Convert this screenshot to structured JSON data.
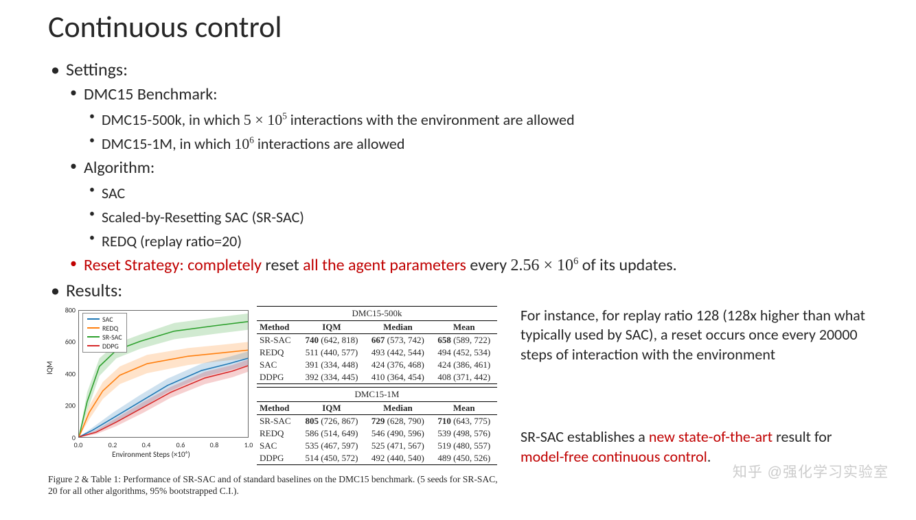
{
  "title": "Continuous control",
  "bullets": {
    "settings": "Settings:",
    "dmc15": "DMC15 Benchmark:",
    "dmc15_500k_a": "DMC15-500k, in which ",
    "dmc15_500k_b": "5 × 10",
    "dmc15_500k_c": " interactions with the environment are allowed",
    "dmc15_1m_a": "DMC15-1M, in which ",
    "dmc15_1m_b": "10",
    "dmc15_1m_c": " interactions are allowed",
    "algorithm": "Algorithm:",
    "sac": "SAC",
    "srsac": "Scaled-by-Resetting SAC (SR-SAC)",
    "redq": "REDQ (replay ratio=20)",
    "reset_a": "Reset Strategy: completely",
    "reset_b": " reset ",
    "reset_c": "all the agent parameters",
    "reset_d": " every ",
    "reset_e": "2.56 × 10",
    "reset_f": " of its updates.",
    "results": "Results:"
  },
  "chart": {
    "ylabel": "IQM",
    "xlabel": "Environment Steps (×10⁶)",
    "ylim": [
      0,
      800
    ],
    "ytick_step": 200,
    "xlim": [
      0.0,
      1.0
    ],
    "xtick_step": 0.2,
    "yticks": [
      "0",
      "200",
      "400",
      "600",
      "800"
    ],
    "xticks": [
      "0.0",
      "0.2",
      "0.4",
      "0.6",
      "0.8",
      "1.0"
    ],
    "legend": [
      {
        "label": "SAC",
        "color": "#1f77b4"
      },
      {
        "label": "REDQ",
        "color": "#ff7f0e"
      },
      {
        "label": "SR-SAC",
        "color": "#2ca02c"
      },
      {
        "label": "DDPG",
        "color": "#d62728"
      }
    ],
    "series_colors": {
      "sac": "#1f77b4",
      "redq": "#ff7f0e",
      "srsac": "#2ca02c",
      "ddpg": "#d62728"
    },
    "line_width": 1.6,
    "fill_opacity": 0.22
  },
  "tables": {
    "t500k": {
      "title": "DMC15-500k",
      "columns": [
        "Method",
        "IQM",
        "Median",
        "Mean"
      ],
      "rows": [
        [
          "SR-SAC",
          "740",
          "(642, 818)",
          "667",
          "(573, 742)",
          "658",
          "(589, 722)"
        ],
        [
          "REDQ",
          "511",
          "(440, 577)",
          "493",
          "(442, 544)",
          "494",
          "(452, 534)"
        ],
        [
          "SAC",
          "391",
          "(334, 448)",
          "424",
          "(376, 468)",
          "424",
          "(386, 461)"
        ],
        [
          "DDPG",
          "392",
          "(334, 445)",
          "410",
          "(364, 454)",
          "408",
          "(371, 442)"
        ]
      ]
    },
    "t1m": {
      "title": "DMC15-1M",
      "columns": [
        "Method",
        "IQM",
        "Median",
        "Mean"
      ],
      "rows": [
        [
          "SR-SAC",
          "805",
          "(726, 867)",
          "729",
          "(628, 790)",
          "710",
          "(643, 775)"
        ],
        [
          "REDQ",
          "586",
          "(514, 649)",
          "546",
          "(490, 596)",
          "539",
          "(498, 576)"
        ],
        [
          "SAC",
          "535",
          "(467, 597)",
          "525",
          "(471, 567)",
          "519",
          "(480, 557)"
        ],
        [
          "DDPG",
          "514",
          "(450, 572)",
          "492",
          "(440, 540)",
          "489",
          "(450, 526)"
        ]
      ]
    }
  },
  "caption": "Figure 2 & Table 1: Performance of SR-SAC and of standard baselines on the DMC15 benchmark. (5 seeds for SR-SAC, 20 for all other algorithms, 95% bootstrapped C.I.).",
  "notes": {
    "n1": "For instance, for replay ratio 128 (128x higher than what typically used by SAC), a reset occurs once every 20000 steps of interaction with the environment",
    "n2a": "SR-SAC establishes a ",
    "n2b": "new state-of-the-art",
    "n2c": " result for ",
    "n2d": "model-free continuous control",
    "n2e": "."
  },
  "watermark": "知乎 @强化学习实验室",
  "colors": {
    "text": "#262626",
    "red": "#c00000",
    "axis": "#666666",
    "background": "#ffffff"
  }
}
